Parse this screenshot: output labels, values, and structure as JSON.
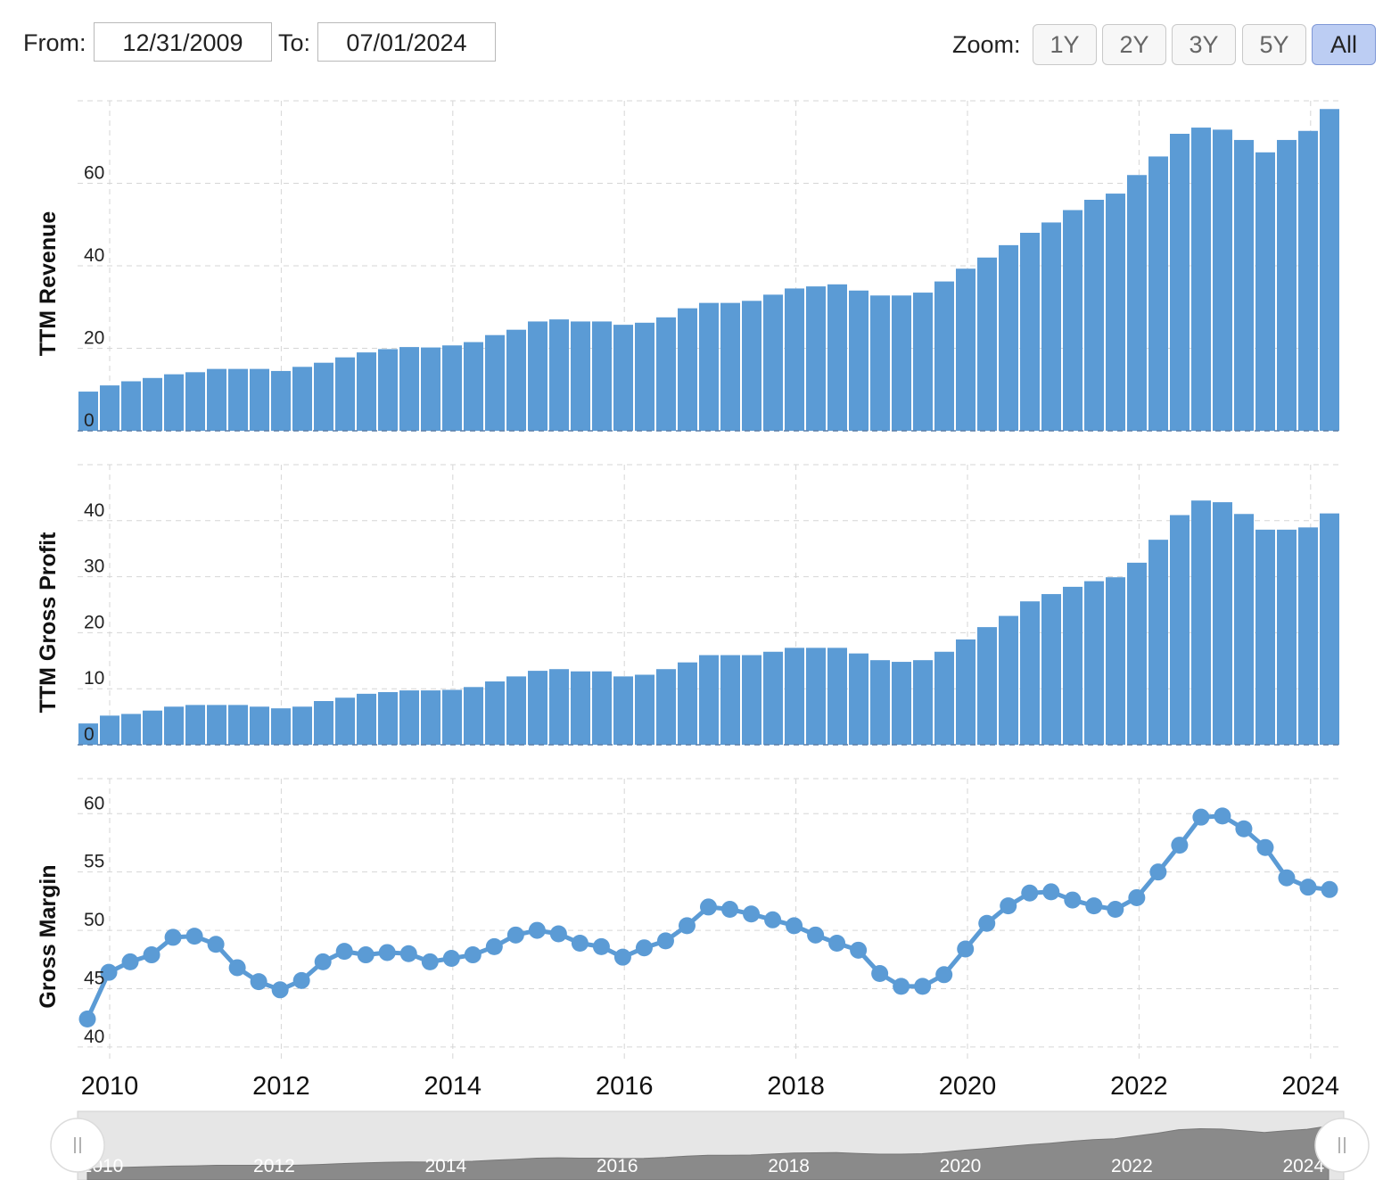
{
  "range": {
    "from_label": "From:",
    "from_value": "12/31/2009",
    "to_label": "To:",
    "to_value": "07/01/2024"
  },
  "zoom": {
    "label": "Zoom:",
    "buttons": [
      "1Y",
      "2Y",
      "3Y",
      "5Y",
      "All"
    ],
    "active": "All"
  },
  "colors": {
    "bar": "#5b9bd5",
    "line": "#5b9bd5",
    "navigator_fill": "#8a8a8a"
  },
  "chart_data": [
    {
      "type": "bar",
      "title": "",
      "ylabel": "TTM Revenue",
      "ylim": [
        0,
        80
      ],
      "yticks": [
        0,
        20,
        40,
        60
      ],
      "x_start": 2009.75,
      "x_step": 0.25,
      "values": [
        9.5,
        11,
        12,
        12.8,
        13.7,
        14.2,
        15,
        15,
        15,
        14.5,
        15.5,
        16.5,
        17.8,
        19,
        19.8,
        20.3,
        20.2,
        20.7,
        21.5,
        23.2,
        24.5,
        26.5,
        27,
        26.5,
        26.5,
        25.7,
        26.2,
        27.5,
        29.7,
        31,
        31,
        31.5,
        33,
        34.5,
        35,
        35.5,
        34,
        32.8,
        32.8,
        33.5,
        36.2,
        39.3,
        42,
        45,
        48,
        50.5,
        53.5,
        56,
        57.5,
        62,
        66.5,
        72,
        73.5,
        73,
        70.5,
        67.5,
        70.5,
        72.7,
        78
      ]
    },
    {
      "type": "bar",
      "title": "",
      "ylabel": "TTM Gross Profit",
      "ylim": [
        0,
        50
      ],
      "yticks": [
        0,
        10,
        20,
        30,
        40
      ],
      "x_start": 2009.75,
      "x_step": 0.25,
      "values": [
        3.8,
        5.2,
        5.5,
        6.1,
        6.8,
        7.1,
        7.1,
        7.1,
        6.8,
        6.5,
        6.8,
        7.8,
        8.4,
        9.1,
        9.4,
        9.7,
        9.7,
        9.8,
        10.3,
        11.3,
        12.2,
        13.2,
        13.5,
        13.1,
        13.1,
        12.2,
        12.5,
        13.5,
        14.7,
        16,
        16,
        16,
        16.6,
        17.3,
        17.3,
        17.3,
        16.3,
        15.1,
        14.8,
        15.1,
        16.6,
        18.8,
        21,
        23,
        25.6,
        26.9,
        28.2,
        29.2,
        29.9,
        32.5,
        36.6,
        41,
        43.6,
        43.3,
        41.2,
        38.4,
        38.4,
        38.8,
        41.3
      ]
    },
    {
      "type": "line",
      "title": "",
      "ylabel": "Gross Margin",
      "ylim": [
        39,
        63
      ],
      "yticks": [
        40,
        45,
        50,
        55,
        60
      ],
      "x_start": 2009.75,
      "x_step": 0.25,
      "values": [
        42.4,
        46.4,
        47.3,
        47.9,
        49.4,
        49.5,
        48.8,
        46.8,
        45.6,
        44.9,
        45.7,
        47.3,
        48.2,
        47.9,
        48.1,
        48.0,
        47.3,
        47.6,
        47.9,
        48.6,
        49.6,
        50.0,
        49.7,
        48.9,
        48.6,
        47.7,
        48.5,
        49.1,
        50.4,
        52.0,
        51.8,
        51.4,
        50.9,
        50.4,
        49.6,
        48.9,
        48.3,
        46.3,
        45.2,
        45.2,
        46.2,
        48.4,
        50.6,
        52.1,
        53.2,
        53.3,
        52.6,
        52.1,
        51.8,
        52.8,
        55.0,
        57.3,
        59.7,
        59.8,
        58.7,
        57.1,
        54.5,
        53.7,
        53.5
      ]
    }
  ],
  "xaxis": {
    "ticks": [
      "2010",
      "2012",
      "2014",
      "2016",
      "2018",
      "2020",
      "2022",
      "2024"
    ]
  },
  "navigator": {
    "ticks": [
      "2010",
      "2012",
      "2014",
      "2016",
      "2018",
      "2020",
      "2022",
      "2024"
    ]
  }
}
